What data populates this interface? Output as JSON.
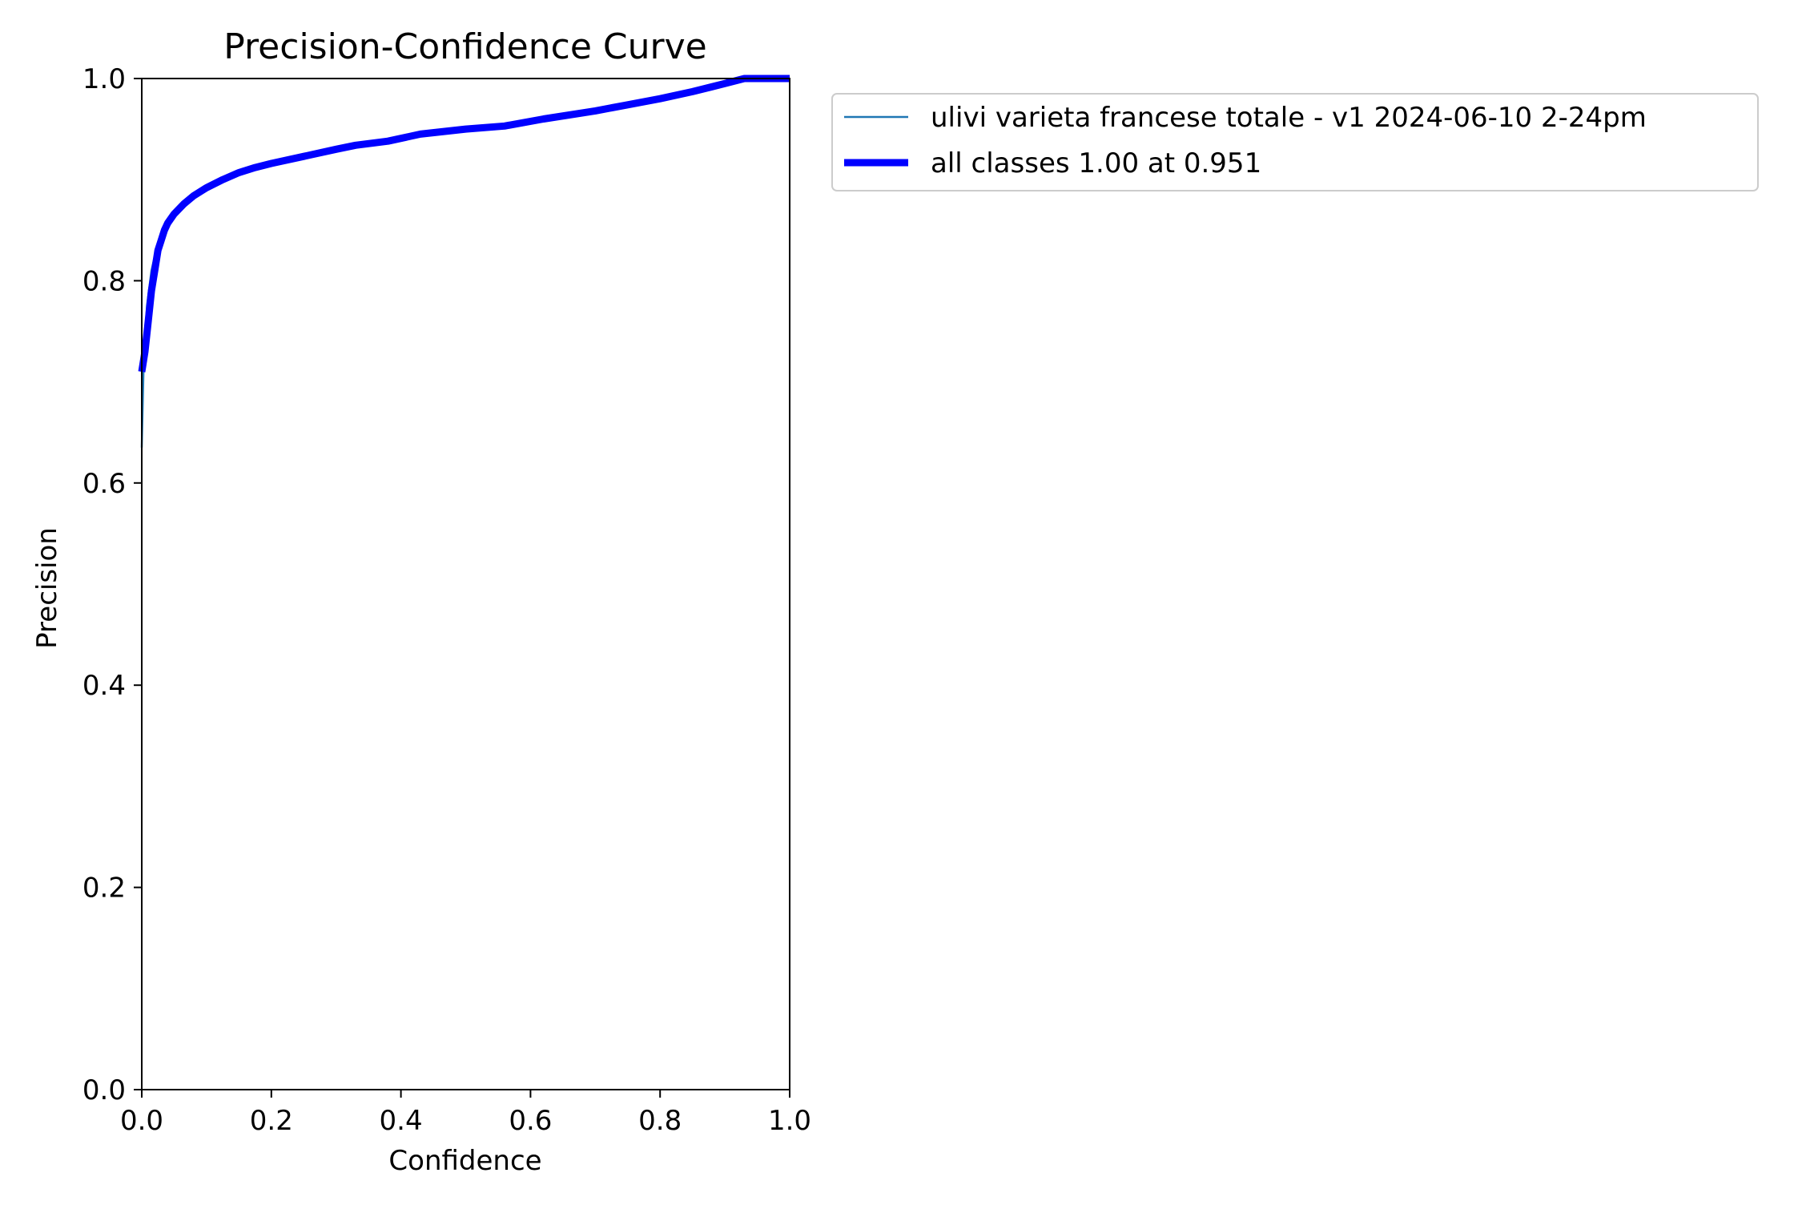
{
  "chart_data": {
    "type": "line",
    "title": "Precision-Confidence Curve",
    "xlabel": "Confidence",
    "ylabel": "Precision",
    "xlim": [
      0,
      1
    ],
    "ylim": [
      0,
      1
    ],
    "xticks": [
      0.0,
      0.2,
      0.4,
      0.6,
      0.8,
      1.0
    ],
    "yticks": [
      0.0,
      0.2,
      0.4,
      0.6,
      0.8,
      1.0
    ],
    "xtick_labels": [
      "0.0",
      "0.2",
      "0.4",
      "0.6",
      "0.8",
      "1.0"
    ],
    "ytick_labels": [
      "0.0",
      "0.2",
      "0.4",
      "0.6",
      "0.8",
      "1.0"
    ],
    "grid": false,
    "legend_position": "outside-top-right",
    "series": [
      {
        "name": "ulivi varieta francese totale - v1 2024-06-10 2-24pm",
        "color": "#1f77b4",
        "style": "thin",
        "x": [
          0.0,
          0.003,
          0.008,
          0.015,
          0.022,
          0.03,
          0.04,
          0.05,
          0.065,
          0.08,
          0.1,
          0.125,
          0.15,
          0.175,
          0.2,
          0.25,
          0.3,
          0.33,
          0.38,
          0.43,
          0.5,
          0.56,
          0.62,
          0.7,
          0.75,
          0.8,
          0.85,
          0.9,
          0.93,
          0.96,
          1.0
        ],
        "y": [
          0.635,
          0.72,
          0.775,
          0.81,
          0.83,
          0.845,
          0.857,
          0.866,
          0.876,
          0.884,
          0.892,
          0.9,
          0.907,
          0.912,
          0.916,
          0.923,
          0.93,
          0.934,
          0.938,
          0.945,
          0.95,
          0.953,
          0.96,
          0.968,
          0.974,
          0.98,
          0.987,
          0.995,
          1.0,
          1.0,
          1.0
        ]
      },
      {
        "name": "all classes 1.00 at 0.951",
        "color": "#0000ff",
        "style": "thick",
        "x": [
          0.0,
          0.005,
          0.01,
          0.015,
          0.02,
          0.025,
          0.03,
          0.035,
          0.04,
          0.05,
          0.065,
          0.08,
          0.1,
          0.125,
          0.15,
          0.175,
          0.2,
          0.25,
          0.3,
          0.33,
          0.38,
          0.43,
          0.5,
          0.56,
          0.62,
          0.7,
          0.75,
          0.8,
          0.85,
          0.9,
          0.93,
          0.96,
          1.0
        ],
        "y": [
          0.71,
          0.73,
          0.76,
          0.79,
          0.81,
          0.83,
          0.84,
          0.85,
          0.857,
          0.866,
          0.876,
          0.884,
          0.892,
          0.9,
          0.907,
          0.912,
          0.916,
          0.923,
          0.93,
          0.934,
          0.938,
          0.945,
          0.95,
          0.953,
          0.96,
          0.968,
          0.974,
          0.98,
          0.987,
          0.995,
          1.0,
          1.0,
          1.0
        ]
      }
    ]
  }
}
